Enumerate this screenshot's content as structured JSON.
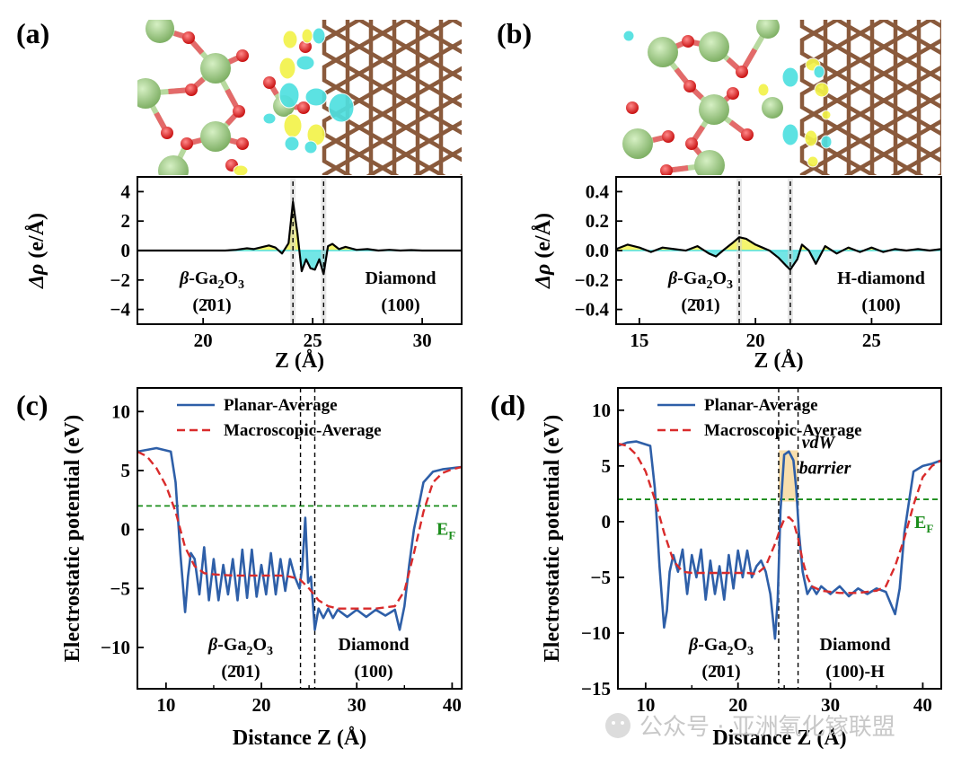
{
  "panels": {
    "a": {
      "label": "(a)"
    },
    "b": {
      "label": "(b)"
    },
    "c": {
      "label": "(c)"
    },
    "d": {
      "label": "(d)"
    }
  },
  "colors": {
    "planar": "#2e5fa8",
    "macro": "#d92b2b",
    "fermi": "#1a8c1a",
    "ga": "#9fcf85",
    "oxygen": "#e02020",
    "carbon": "#8a5a3c",
    "h": "#d9d9d9",
    "yellow": "#f2f24a",
    "cyan": "#4fe0e0",
    "barrier": "#f5d28a"
  },
  "chart_data": [
    {
      "id": "a",
      "type": "line",
      "title": "",
      "xlabel": "Z (Å)",
      "ylabel": "Δρ (e/Å)",
      "xlim": [
        17,
        31.8
      ],
      "ylim": [
        -5,
        5
      ],
      "xticks": [
        20,
        25,
        30
      ],
      "yticks": [
        4,
        2,
        0,
        -2,
        -4
      ],
      "interfaces": [
        24.1,
        25.5
      ],
      "annotations": {
        "left_material": "β-Ga₂O₃",
        "left_facet": "(2̄01)",
        "right_material": "Diamond",
        "right_facet": "(100)"
      },
      "series": [
        {
          "x": [
            17,
            18,
            19,
            20,
            21,
            21.5,
            22,
            22.3,
            22.6,
            23,
            23.3,
            23.6,
            23.9,
            24.1,
            24.3,
            24.5,
            24.7,
            24.9,
            25.1,
            25.3,
            25.5,
            25.7,
            25.9,
            26.2,
            26.5,
            27,
            27.5,
            28,
            28.5,
            29,
            29.5,
            30,
            30.5,
            31,
            31.8
          ],
          "y": [
            0,
            0,
            0,
            0,
            0,
            0.05,
            0.15,
            0.1,
            0.2,
            0.35,
            0.2,
            -0.2,
            0.5,
            3.3,
            1.2,
            -1.4,
            -0.6,
            -1.2,
            -1.3,
            -0.6,
            -1.6,
            0.3,
            0.45,
            0.1,
            0.25,
            0.05,
            0.1,
            0,
            0.05,
            0,
            0.03,
            0,
            0,
            0,
            0
          ]
        }
      ]
    },
    {
      "id": "b",
      "type": "line",
      "title": "",
      "xlabel": "Z (Å)",
      "ylabel": "Δρ (e/Å)",
      "xlim": [
        14,
        28
      ],
      "ylim": [
        -0.5,
        0.5
      ],
      "xticks": [
        15,
        20,
        25
      ],
      "yticks": [
        0.4,
        0.2,
        0.0,
        -0.2,
        -0.4
      ],
      "interfaces": [
        19.3,
        21.5
      ],
      "annotations": {
        "left_material": "β-Ga₂O₃",
        "left_facet": "(2̄01)",
        "right_material": "H-diamond",
        "right_facet": "(100)"
      },
      "series": [
        {
          "x": [
            14,
            14.5,
            15,
            15.5,
            16,
            16.5,
            17,
            17.5,
            18,
            18.3,
            18.6,
            19,
            19.3,
            19.6,
            20,
            20.3,
            20.6,
            21,
            21.3,
            21.5,
            21.8,
            22,
            22.3,
            22.6,
            23,
            23.5,
            24,
            24.5,
            25,
            25.5,
            26,
            26.5,
            27,
            27.5,
            28
          ],
          "y": [
            0.01,
            0.04,
            0.02,
            -0.01,
            0.02,
            0.01,
            0.0,
            0.03,
            -0.02,
            -0.04,
            0.0,
            0.05,
            0.09,
            0.08,
            0.04,
            0.02,
            0.0,
            -0.05,
            -0.1,
            -0.13,
            -0.06,
            0.04,
            0.0,
            -0.09,
            0.03,
            -0.02,
            0.02,
            -0.01,
            0.02,
            -0.01,
            0.01,
            0.0,
            0.01,
            0.0,
            0.01
          ]
        }
      ]
    },
    {
      "id": "c",
      "type": "line",
      "title": "",
      "xlabel": "Distance Z (Å)",
      "ylabel": "Electrostatic potential (eV)",
      "xlim": [
        7,
        41
      ],
      "ylim": [
        -13.5,
        12
      ],
      "xticks": [
        10,
        20,
        30,
        40
      ],
      "yticks": [
        10,
        5,
        0,
        -5,
        -10
      ],
      "fermi_level": 2,
      "fermi_label": "E",
      "fermi_sub": "F",
      "interfaces": [
        24.1,
        25.6
      ],
      "legend": [
        "Planar-Average",
        "Macroscopic-Average"
      ],
      "annotations": {
        "left_material": "β-Ga₂O₃",
        "left_facet": "(2̄01)",
        "right_material": "Diamond",
        "right_facet": "(100)"
      },
      "series": [
        {
          "name": "Planar-Average",
          "x": [
            7,
            9,
            10.5,
            11,
            11.5,
            12,
            12.3,
            12.6,
            13,
            13.5,
            14,
            14.5,
            15,
            15.5,
            16,
            16.5,
            17,
            17.5,
            18,
            18.5,
            19,
            19.5,
            20,
            20.5,
            21,
            21.5,
            22,
            22.5,
            23,
            23.5,
            24,
            24.3,
            24.6,
            24.9,
            25.2,
            25.6,
            26,
            26.5,
            27,
            27.5,
            28,
            29,
            30,
            31,
            32,
            33,
            34,
            34.5,
            35,
            35.5,
            36,
            37,
            38,
            39,
            40,
            41
          ],
          "y": [
            6.6,
            6.9,
            6.6,
            4,
            -2,
            -7,
            -4,
            -2,
            -2.5,
            -5.5,
            -1.5,
            -6,
            -2.5,
            -6,
            -3,
            -5.5,
            -2.5,
            -6,
            -1.7,
            -5.8,
            -1.7,
            -5.7,
            -3,
            -5.5,
            -2,
            -5.5,
            -2.5,
            -5.2,
            -2.5,
            -4,
            -5,
            -3,
            1,
            -4.5,
            -4,
            -8.5,
            -6.7,
            -7.5,
            -6.7,
            -7.5,
            -6.8,
            -7.4,
            -6.8,
            -7.4,
            -6.8,
            -7.3,
            -6.8,
            -8.5,
            -6.5,
            -3,
            0,
            4,
            4.9,
            5.1,
            5.2,
            5.3
          ]
        },
        {
          "name": "Macroscopic-Average",
          "x": [
            7,
            8,
            9,
            10,
            11,
            11.5,
            12,
            13,
            14,
            15,
            17,
            19,
            21,
            22,
            23,
            24,
            25,
            26,
            27,
            28,
            30,
            32,
            34,
            35,
            36,
            37,
            38,
            39,
            40,
            41
          ],
          "y": [
            6.6,
            6.2,
            5.2,
            3.7,
            1.5,
            0,
            -1.5,
            -3.1,
            -3.7,
            -3.8,
            -3.9,
            -3.9,
            -3.9,
            -3.9,
            -4,
            -4.2,
            -5,
            -6,
            -6.5,
            -6.7,
            -6.7,
            -6.7,
            -6.5,
            -5.2,
            -2,
            1.5,
            4,
            4.8,
            5.1,
            5.3
          ]
        }
      ]
    },
    {
      "id": "d",
      "type": "line",
      "title": "",
      "xlabel": "Distance Z (Å)",
      "ylabel": "Electrostatic potential (eV)",
      "xlim": [
        7,
        42
      ],
      "ylim": [
        -15,
        12
      ],
      "xticks": [
        10,
        20,
        30,
        40
      ],
      "yticks": [
        10,
        5,
        0,
        -5,
        -10,
        -15
      ],
      "fermi_level": 2,
      "fermi_label": "E",
      "fermi_sub": "F",
      "interfaces": [
        24.4,
        26.5
      ],
      "barrier_label_1": "vdW",
      "barrier_label_2": "barrier",
      "legend": [
        "Planar-Average",
        "Macroscopic-Average"
      ],
      "annotations": {
        "left_material": "β-Ga₂O₃",
        "left_facet": "(2̄01)",
        "right_material": "Diamond",
        "right_facet": "(100)-H"
      },
      "series": [
        {
          "name": "Planar-Average",
          "x": [
            7,
            8,
            9,
            10.5,
            11,
            11.5,
            12,
            12.3,
            12.6,
            13,
            13.5,
            14,
            14.5,
            15,
            15.5,
            16,
            16.5,
            17,
            17.5,
            18,
            18.5,
            19,
            19.5,
            20,
            20.5,
            21,
            21.5,
            22,
            22.5,
            23,
            23.5,
            24,
            24.3,
            24.6,
            25,
            25.5,
            26,
            26.3,
            26.6,
            27,
            27.5,
            28,
            28.5,
            29,
            30,
            31,
            32,
            33,
            34,
            35,
            36,
            37,
            37.5,
            38,
            39,
            40,
            41,
            42
          ],
          "y": [
            6.8,
            7.1,
            7.2,
            6.8,
            3,
            -4,
            -9.5,
            -8,
            -4.5,
            -3,
            -4.5,
            -2.5,
            -6.5,
            -3,
            -5,
            -2.5,
            -7,
            -3.5,
            -6.5,
            -4,
            -7,
            -3,
            -6,
            -2.6,
            -5,
            -2.6,
            -5,
            -4,
            -3.5,
            -4.5,
            -6.5,
            -10.5,
            -7,
            1,
            6,
            6.3,
            5.5,
            3,
            -1,
            -4.5,
            -6.5,
            -5.8,
            -6.5,
            -5.8,
            -6.5,
            -5.8,
            -6.7,
            -6,
            -6.5,
            -6,
            -6.3,
            -8.3,
            -6,
            -1,
            4.5,
            5,
            5.2,
            5.5
          ]
        },
        {
          "name": "Macroscopic-Average",
          "x": [
            7,
            8,
            9,
            10,
            11,
            11.5,
            12,
            13,
            14,
            15,
            17,
            19,
            21,
            22,
            23,
            23.5,
            24,
            24.5,
            25,
            25.5,
            26,
            26.5,
            27,
            27.5,
            28,
            29,
            31,
            33,
            35,
            36,
            37,
            38,
            39,
            40,
            41,
            42
          ],
          "y": [
            7,
            6.8,
            6,
            4.5,
            2,
            0.5,
            -1,
            -3.5,
            -4.5,
            -4.6,
            -4.6,
            -4.6,
            -4.6,
            -4.7,
            -4,
            -3,
            -2,
            -0.8,
            0.2,
            0.4,
            0,
            -1.5,
            -3.5,
            -5,
            -5.8,
            -6.2,
            -6.4,
            -6.4,
            -6.2,
            -5.8,
            -4,
            -1.5,
            1.5,
            4,
            5,
            5.5
          ]
        }
      ]
    }
  ],
  "watermark": "公众号 · 亚洲氧化镓联盟"
}
